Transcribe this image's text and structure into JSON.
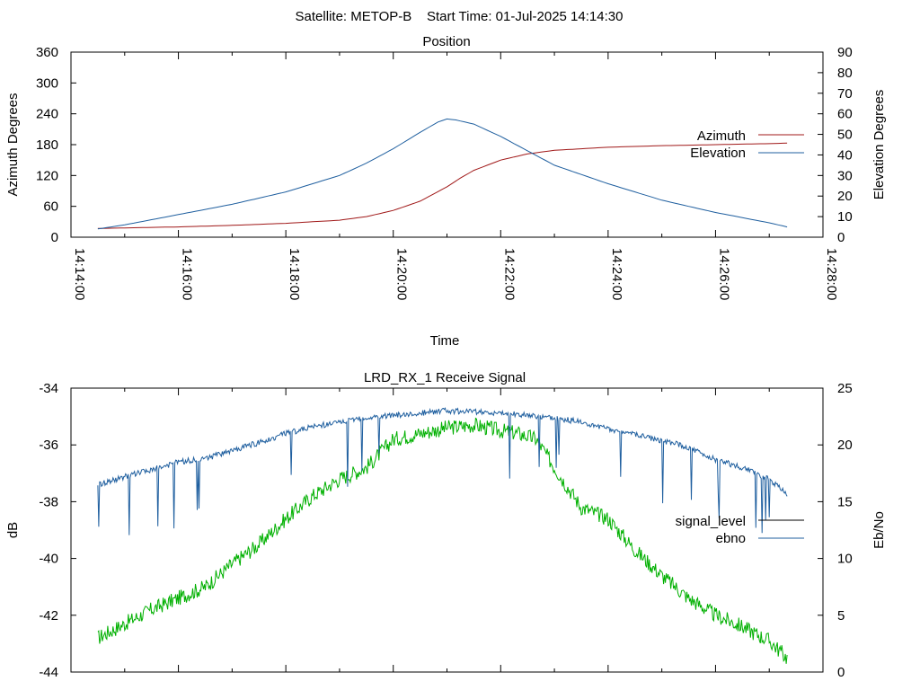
{
  "header": {
    "title": "Satellite: METOP-B    Start Time: 01-Jul-2025 14:14:30"
  },
  "colors": {
    "azimuth": "#a01818",
    "elevation": "#1f5f9f",
    "signal": "#00b000",
    "ebno": "#1f5f9f",
    "signal_legend": "#000000"
  },
  "chart_data": [
    {
      "type": "line",
      "title": "Position",
      "xlabel": "Time",
      "ylabel": "Azimuth Degrees",
      "y2label": "Elevation Degrees",
      "xlim": [
        "14:14:00",
        "14:28:00"
      ],
      "ylim": [
        0,
        360
      ],
      "y2lim": [
        0,
        90
      ],
      "xticks": [
        "14:14:00",
        "14:16:00",
        "14:18:00",
        "14:20:00",
        "14:22:00",
        "14:24:00",
        "14:26:00",
        "14:28:00"
      ],
      "yticks": [
        "0",
        "60",
        "120",
        "180",
        "240",
        "300",
        "360"
      ],
      "y2ticks": [
        "0",
        "10",
        "20",
        "30",
        "40",
        "50",
        "60",
        "70",
        "80",
        "90"
      ],
      "legend_position": "right",
      "series": [
        {
          "name": "Azimuth",
          "axis": "left",
          "x": [
            "14:14:30",
            "14:15:00",
            "14:16:00",
            "14:17:00",
            "14:18:00",
            "14:19:00",
            "14:19:30",
            "14:20:00",
            "14:20:30",
            "14:21:00",
            "14:21:15",
            "14:21:30",
            "14:22:00",
            "14:22:30",
            "14:23:00",
            "14:24:00",
            "14:25:00",
            "14:26:00",
            "14:27:00",
            "14:27:20"
          ],
          "values": [
            17,
            18,
            20,
            23,
            27,
            33,
            40,
            52,
            70,
            98,
            115,
            130,
            150,
            162,
            169,
            175,
            178,
            180,
            182,
            183
          ]
        },
        {
          "name": "Elevation",
          "axis": "right",
          "x": [
            "14:14:30",
            "14:15:00",
            "14:16:00",
            "14:17:00",
            "14:18:00",
            "14:19:00",
            "14:19:30",
            "14:20:00",
            "14:20:30",
            "14:20:50",
            "14:21:00",
            "14:21:10",
            "14:21:30",
            "14:22:00",
            "14:22:30",
            "14:23:00",
            "14:24:00",
            "14:25:00",
            "14:26:00",
            "14:27:00",
            "14:27:20"
          ],
          "values": [
            4,
            6,
            11,
            16,
            22,
            30,
            36,
            43,
            51,
            56,
            57.5,
            57,
            55,
            49,
            42,
            35,
            26,
            18,
            12,
            7,
            5
          ]
        }
      ]
    },
    {
      "type": "line",
      "title": "LRD_RX_1 Receive Signal",
      "xlabel": "",
      "ylabel": "dB",
      "y2label": "Eb/No",
      "xlim": [
        "14:14:00",
        "14:28:00"
      ],
      "ylim": [
        -44,
        -34
      ],
      "y2lim": [
        0,
        25
      ],
      "yticks": [
        "-34",
        "-36",
        "-38",
        "-40",
        "-42",
        "-44"
      ],
      "y2ticks": [
        "25",
        "20",
        "15",
        "10",
        "5",
        "0"
      ],
      "legend_position": "right",
      "series": [
        {
          "name": "signal_level",
          "axis": "left",
          "x": [
            "14:14:30",
            "14:15:00",
            "14:15:30",
            "14:16:00",
            "14:16:15",
            "14:16:30",
            "14:17:00",
            "14:17:30",
            "14:18:00",
            "14:18:30",
            "14:19:00",
            "14:19:30",
            "14:19:45",
            "14:20:00",
            "14:20:30",
            "14:21:00",
            "14:21:30",
            "14:22:00",
            "14:22:20",
            "14:22:40",
            "14:23:00",
            "14:23:30",
            "14:24:00",
            "14:24:30",
            "14:25:00",
            "14:25:30",
            "14:26:00",
            "14:26:30",
            "14:27:00",
            "14:27:20"
          ],
          "values": [
            -42.8,
            -42.3,
            -41.8,
            -41.4,
            -41.2,
            -41.0,
            -40.2,
            -39.5,
            -38.6,
            -37.8,
            -37.2,
            -36.8,
            -36.3,
            -35.8,
            -35.6,
            -35.4,
            -35.3,
            -35.5,
            -35.6,
            -35.8,
            -36.8,
            -38.2,
            -38.6,
            -39.7,
            -40.6,
            -41.4,
            -42.0,
            -42.4,
            -42.9,
            -43.5
          ]
        },
        {
          "name": "ebno",
          "axis": "right",
          "x": [
            "14:14:30",
            "14:15:00",
            "14:15:30",
            "14:16:00",
            "14:16:30",
            "14:17:00",
            "14:17:30",
            "14:18:00",
            "14:18:30",
            "14:19:00",
            "14:19:30",
            "14:20:00",
            "14:20:30",
            "14:21:00",
            "14:21:30",
            "14:22:00",
            "14:22:30",
            "14:23:00",
            "14:23:30",
            "14:24:00",
            "14:24:30",
            "14:25:00",
            "14:25:30",
            "14:26:00",
            "14:26:30",
            "14:27:00",
            "14:27:20"
          ],
          "values": [
            16.5,
            17.2,
            17.8,
            18.5,
            18.8,
            19.5,
            20.2,
            21.0,
            21.6,
            22.0,
            22.4,
            22.6,
            22.8,
            23.0,
            22.9,
            22.8,
            22.6,
            22.4,
            22.0,
            21.4,
            20.9,
            20.4,
            19.8,
            18.7,
            18.0,
            17.0,
            15.6
          ]
        }
      ]
    }
  ]
}
